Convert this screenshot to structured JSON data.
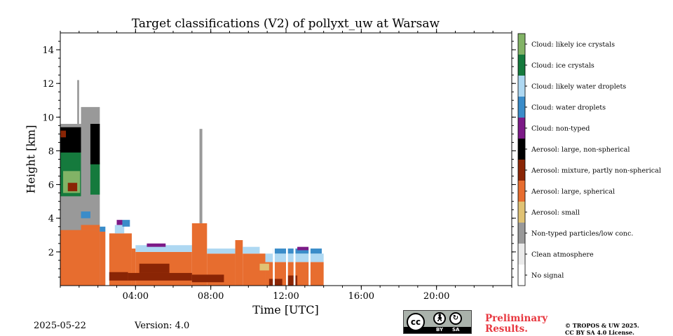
{
  "chart_data": {
    "type": "heatmap",
    "title": "Target classifications (V2) of pollyxt_uw at Warsaw",
    "xlabel": "Time [UTC]",
    "ylabel": "Height [km]",
    "xlim_hours": [
      0,
      24
    ],
    "ylim_km": [
      0,
      15
    ],
    "x_ticks": [
      {
        "hour": 4,
        "label": "04:00"
      },
      {
        "hour": 8,
        "label": "08:00"
      },
      {
        "hour": 12,
        "label": "12:00"
      },
      {
        "hour": 16,
        "label": "16:00"
      },
      {
        "hour": 20,
        "label": "20:00"
      }
    ],
    "y_ticks": [
      {
        "km": 2,
        "label": "2"
      },
      {
        "km": 4,
        "label": "4"
      },
      {
        "km": 6,
        "label": "6"
      },
      {
        "km": 8,
        "label": "8"
      },
      {
        "km": 10,
        "label": "10"
      },
      {
        "km": 12,
        "label": "12"
      },
      {
        "km": 14,
        "label": "14"
      }
    ],
    "legend_position": "right colorbar",
    "classes": [
      {
        "label": "No signal",
        "color": "#ffffff"
      },
      {
        "label": "Clean atmosphere",
        "color": "#ebebeb"
      },
      {
        "label": "Non-typed particles/low conc.",
        "color": "#999999"
      },
      {
        "label": "Aerosol: small",
        "color": "#e0c274"
      },
      {
        "label": "Aerosol: large, spherical",
        "color": "#e76d2f"
      },
      {
        "label": "Aerosol: mixture, partly non-spherical",
        "color": "#8a2505"
      },
      {
        "label": "Aerosol: large, non-spherical",
        "color": "#000000"
      },
      {
        "label": "Cloud: non-typed",
        "color": "#7c1a87"
      },
      {
        "label": "Cloud: water droplets",
        "color": "#3a8cc9"
      },
      {
        "label": "Cloud: likely water droplets",
        "color": "#aed8f2"
      },
      {
        "label": "Cloud: ice crystals",
        "color": "#157a3d"
      },
      {
        "label": "Cloud: likely ice crystals",
        "color": "#82b366"
      }
    ],
    "regions": [
      {
        "cls": 2,
        "x0": 0.0,
        "x1": 1.1,
        "y0": 0.0,
        "y1": 9.6
      },
      {
        "cls": 2,
        "x0": 1.1,
        "x1": 2.1,
        "y0": 0.0,
        "y1": 10.6
      },
      {
        "cls": 10,
        "x0": 0.0,
        "x1": 1.1,
        "y0": 5.3,
        "y1": 8.3
      },
      {
        "cls": 11,
        "x0": 0.15,
        "x1": 1.05,
        "y0": 5.5,
        "y1": 6.8
      },
      {
        "cls": 10,
        "x0": 1.6,
        "x1": 2.1,
        "y0": 5.4,
        "y1": 7.3
      },
      {
        "cls": 6,
        "x0": 0.0,
        "x1": 1.1,
        "y0": 7.9,
        "y1": 9.4
      },
      {
        "cls": 5,
        "x0": 0.0,
        "x1": 0.3,
        "y0": 8.8,
        "y1": 9.2
      },
      {
        "cls": 5,
        "x0": 0.4,
        "x1": 0.9,
        "y0": 5.6,
        "y1": 6.1
      },
      {
        "cls": 6,
        "x0": 1.6,
        "x1": 2.1,
        "y0": 7.2,
        "y1": 9.6
      },
      {
        "cls": 4,
        "x0": 0.0,
        "x1": 2.1,
        "y0": 0.0,
        "y1": 3.3
      },
      {
        "cls": 4,
        "x0": 1.1,
        "x1": 2.1,
        "y0": 3.3,
        "y1": 3.6
      },
      {
        "cls": 2,
        "x0": 0.0,
        "x1": 1.1,
        "y0": 3.3,
        "y1": 5.3
      },
      {
        "cls": 8,
        "x0": 1.1,
        "x1": 1.6,
        "y0": 4.0,
        "y1": 4.4
      },
      {
        "cls": 8,
        "x0": 2.1,
        "x1": 2.4,
        "y0": 3.2,
        "y1": 3.5
      },
      {
        "cls": 4,
        "x0": 2.1,
        "x1": 2.4,
        "y0": 0.0,
        "y1": 3.2
      },
      {
        "cls": 4,
        "x0": 2.6,
        "x1": 3.8,
        "y0": 0.0,
        "y1": 3.1
      },
      {
        "cls": 9,
        "x0": 2.9,
        "x1": 3.4,
        "y0": 3.1,
        "y1": 3.6
      },
      {
        "cls": 7,
        "x0": 3.0,
        "x1": 3.3,
        "y0": 3.6,
        "y1": 3.9
      },
      {
        "cls": 8,
        "x0": 3.3,
        "x1": 3.7,
        "y0": 3.5,
        "y1": 3.9
      },
      {
        "cls": 4,
        "x0": 3.8,
        "x1": 4.0,
        "y0": 0.0,
        "y1": 2.2
      },
      {
        "cls": 4,
        "x0": 4.0,
        "x1": 7.0,
        "y0": 0.0,
        "y1": 2.0
      },
      {
        "cls": 9,
        "x0": 4.0,
        "x1": 7.0,
        "y0": 2.0,
        "y1": 2.4
      },
      {
        "cls": 7,
        "x0": 4.6,
        "x1": 5.6,
        "y0": 2.3,
        "y1": 2.5
      },
      {
        "cls": 4,
        "x0": 7.0,
        "x1": 7.8,
        "y0": 0.0,
        "y1": 3.7
      },
      {
        "cls": 4,
        "x0": 7.8,
        "x1": 9.3,
        "y0": 0.0,
        "y1": 1.9
      },
      {
        "cls": 9,
        "x0": 7.8,
        "x1": 9.3,
        "y0": 1.9,
        "y1": 2.2
      },
      {
        "cls": 4,
        "x0": 9.3,
        "x1": 9.7,
        "y0": 0.0,
        "y1": 2.7
      },
      {
        "cls": 4,
        "x0": 9.7,
        "x1": 10.9,
        "y0": 0.0,
        "y1": 1.9
      },
      {
        "cls": 9,
        "x0": 9.7,
        "x1": 10.6,
        "y0": 1.9,
        "y1": 2.3
      },
      {
        "cls": 4,
        "x0": 10.9,
        "x1": 14.0,
        "y0": 0.0,
        "y1": 1.4
      },
      {
        "cls": 9,
        "x0": 10.9,
        "x1": 14.0,
        "y0": 1.4,
        "y1": 1.9
      },
      {
        "cls": 8,
        "x0": 11.3,
        "x1": 13.9,
        "y0": 1.9,
        "y1": 2.2
      },
      {
        "cls": 7,
        "x0": 12.6,
        "x1": 13.2,
        "y0": 2.1,
        "y1": 2.3
      },
      {
        "cls": 3,
        "x0": 10.6,
        "x1": 11.1,
        "y0": 0.9,
        "y1": 1.3
      },
      {
        "cls": 5,
        "x0": 2.5,
        "x1": 3.6,
        "y0": 0.3,
        "y1": 0.8
      },
      {
        "cls": 5,
        "x0": 3.6,
        "x1": 7.0,
        "y0": 0.3,
        "y1": 0.75
      },
      {
        "cls": 5,
        "x0": 4.2,
        "x1": 5.8,
        "y0": 0.75,
        "y1": 1.3
      },
      {
        "cls": 5,
        "x0": 7.0,
        "x1": 8.7,
        "y0": 0.2,
        "y1": 0.65
      },
      {
        "cls": 5,
        "x0": 11.1,
        "x1": 11.8,
        "y0": 0.0,
        "y1": 0.4
      },
      {
        "cls": 5,
        "x0": 12.1,
        "x1": 12.6,
        "y0": 0.0,
        "y1": 0.6
      },
      {
        "cls": 0,
        "x0": 2.4,
        "x1": 2.6,
        "y0": 0.0,
        "y1": 15.0
      },
      {
        "cls": 0,
        "x0": 11.3,
        "x1": 11.4,
        "y0": 0.0,
        "y1": 2.4
      },
      {
        "cls": 0,
        "x0": 12.0,
        "x1": 12.1,
        "y0": 0.0,
        "y1": 2.4
      },
      {
        "cls": 0,
        "x0": 12.4,
        "x1": 12.5,
        "y0": 0.0,
        "y1": 2.4
      },
      {
        "cls": 0,
        "x0": 13.2,
        "x1": 13.3,
        "y0": 0.0,
        "y1": 2.4
      },
      {
        "cls": 2,
        "x0": 7.4,
        "x1": 7.55,
        "y0": 3.7,
        "y1": 9.3
      },
      {
        "cls": 2,
        "x0": 0.9,
        "x1": 1.0,
        "y0": 9.6,
        "y1": 12.2
      }
    ]
  },
  "footer": {
    "date": "2025-05-22",
    "version": "Version: 4.0",
    "preliminary": "Preliminary Results.",
    "copyright_line1": "© TROPOS & UW 2025.",
    "copyright_line2": "CC BY SA 4.0 License.",
    "cc_badge": {
      "main": "cc",
      "by": "BY",
      "sa": "SA"
    }
  }
}
